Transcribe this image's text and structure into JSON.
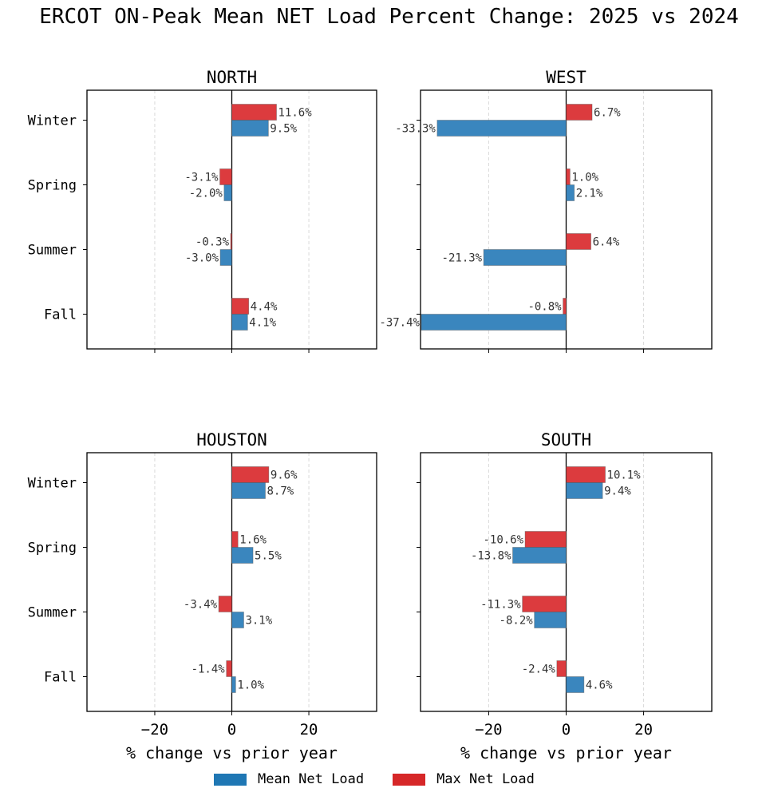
{
  "title": "ERCOT ON-Peak Mean NET Load Percent Change: 2025 vs 2024",
  "colors": {
    "mean": "#1f77b4",
    "max": "#d62728",
    "mean_bar": "#3a86be",
    "max_bar": "#dc3b3e"
  },
  "legend": [
    {
      "label": "Mean Net Load",
      "color": "#1f77b4"
    },
    {
      "label": "Max Net Load",
      "color": "#d62728"
    }
  ],
  "chart_data": [
    {
      "type": "bar",
      "orientation": "horizontal",
      "title": "NORTH",
      "categories": [
        "Winter",
        "Spring",
        "Summer",
        "Fall"
      ],
      "series": [
        {
          "name": "Max Net Load",
          "values": [
            11.6,
            -3.1,
            -0.3,
            4.4
          ],
          "labels": [
            "11.6%",
            "-3.1%",
            "-0.3%",
            "4.4%"
          ]
        },
        {
          "name": "Mean Net Load",
          "values": [
            9.5,
            -2.0,
            -3.0,
            4.1
          ],
          "labels": [
            "9.5%",
            "-2.0%",
            "-3.0%",
            "4.1%"
          ]
        }
      ],
      "xlabel": "",
      "xlim": [
        -37.6,
        37.6
      ],
      "xticks": [],
      "show_ytick_labels": true
    },
    {
      "type": "bar",
      "orientation": "horizontal",
      "title": "WEST",
      "categories": [
        "Winter",
        "Spring",
        "Summer",
        "Fall"
      ],
      "series": [
        {
          "name": "Max Net Load",
          "values": [
            6.7,
            1.0,
            6.4,
            -0.8
          ],
          "labels": [
            "6.7%",
            "1.0%",
            "6.4%",
            "-0.8%"
          ]
        },
        {
          "name": "Mean Net Load",
          "values": [
            -33.3,
            2.1,
            -21.3,
            -37.4
          ],
          "labels": [
            "-33.3%",
            "2.1%",
            "-21.3%",
            "-37.4%"
          ]
        }
      ],
      "xlabel": "",
      "xlim": [
        -37.6,
        37.6
      ],
      "xticks": [],
      "show_ytick_labels": false
    },
    {
      "type": "bar",
      "orientation": "horizontal",
      "title": "HOUSTON",
      "categories": [
        "Winter",
        "Spring",
        "Summer",
        "Fall"
      ],
      "series": [
        {
          "name": "Max Net Load",
          "values": [
            9.6,
            1.6,
            -3.4,
            -1.4
          ],
          "labels": [
            "9.6%",
            "1.6%",
            "-3.4%",
            "-1.4%"
          ]
        },
        {
          "name": "Mean Net Load",
          "values": [
            8.7,
            5.5,
            3.1,
            1.0
          ],
          "labels": [
            "8.7%",
            "5.5%",
            "3.1%",
            "1.0%"
          ]
        }
      ],
      "xlabel": "% change vs prior year",
      "xlim": [
        -37.6,
        37.6
      ],
      "xticks": [
        {
          "value": -20,
          "label": "−20"
        },
        {
          "value": 0,
          "label": "0"
        },
        {
          "value": 20,
          "label": "20"
        }
      ],
      "show_ytick_labels": true
    },
    {
      "type": "bar",
      "orientation": "horizontal",
      "title": "SOUTH",
      "categories": [
        "Winter",
        "Spring",
        "Summer",
        "Fall"
      ],
      "series": [
        {
          "name": "Max Net Load",
          "values": [
            10.1,
            -10.6,
            -11.3,
            -2.4
          ],
          "labels": [
            "10.1%",
            "-10.6%",
            "-11.3%",
            "-2.4%"
          ]
        },
        {
          "name": "Mean Net Load",
          "values": [
            9.4,
            -13.8,
            -8.2,
            4.6
          ],
          "labels": [
            "9.4%",
            "-13.8%",
            "-8.2%",
            "4.6%"
          ]
        }
      ],
      "xlabel": "% change vs prior year",
      "xlim": [
        -37.6,
        37.6
      ],
      "xticks": [
        {
          "value": -20,
          "label": "−20"
        },
        {
          "value": 0,
          "label": "0"
        },
        {
          "value": 20,
          "label": "20"
        }
      ],
      "show_ytick_labels": false
    }
  ]
}
